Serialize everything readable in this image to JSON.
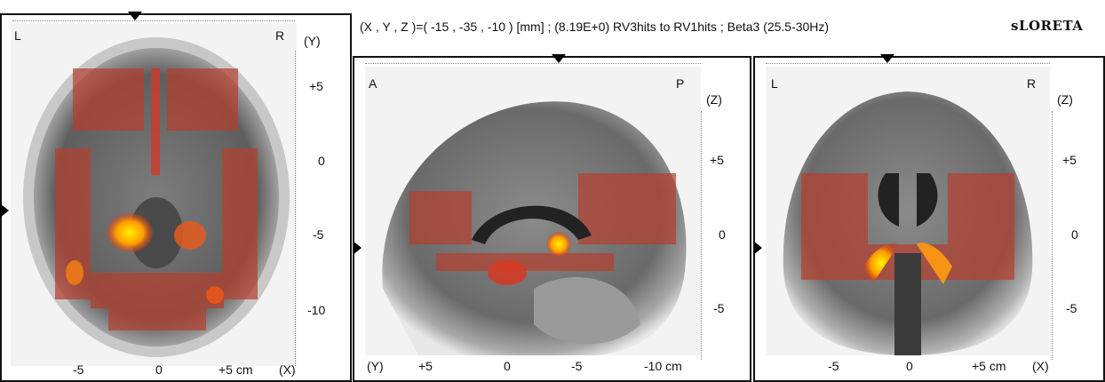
{
  "header": {
    "coordinates_text": "(X , Y , Z )=( -15 , -35 , -10 ) [mm]  ;  (8.19E+0)   RV3hits to RV1hits ; Beta3 (25.5-30Hz)",
    "brand": "sLORETA"
  },
  "axial": {
    "corner_left": "L",
    "corner_right": "R",
    "axis_name": "(Y)",
    "y_ticks": [
      "+5",
      "0",
      "-5",
      "-10"
    ],
    "x_ticks": [
      "-5",
      "0",
      "+5 cm"
    ],
    "x_axis_name": "(X)"
  },
  "sagittal": {
    "corner_left": "A",
    "corner_right": "P",
    "axis_name": "(Z)",
    "z_ticks": [
      "+5",
      "0",
      "-5"
    ],
    "y_axis_name": "(Y)",
    "y_ticks": [
      "+5",
      "0",
      "-5",
      "-10 cm"
    ]
  },
  "coronal": {
    "corner_left": "L",
    "corner_right": "R",
    "axis_name": "(Z)",
    "z_ticks": [
      "+5",
      "0",
      "-5"
    ],
    "x_ticks": [
      "-5",
      "0",
      "+5 cm"
    ],
    "x_axis_name": "(X)"
  },
  "colors": {
    "activation_low": "#c0392b",
    "activation_high": "#ffe600",
    "border": "#111111"
  }
}
